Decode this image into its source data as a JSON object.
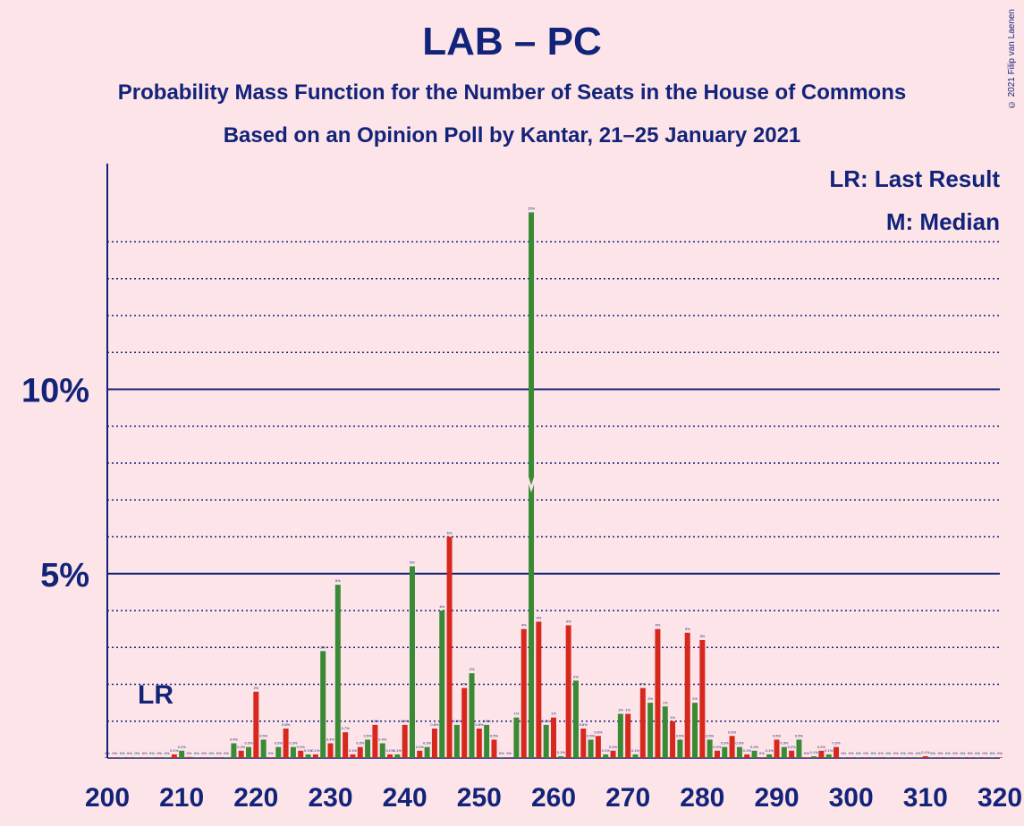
{
  "title": "LAB – PC",
  "subtitle1": "Probability Mass Function for the Number of Seats in the House of Commons",
  "subtitle2": "Based on an Opinion Poll by Kantar, 21–25 January 2021",
  "copyright": "© 2021 Filip van Laenen",
  "legend": {
    "lr": "LR: Last Result",
    "m": "M: Median"
  },
  "lr_marker": "LR",
  "colors": {
    "red": "#d7281e",
    "green": "#3a8a35",
    "navy": "#12237a",
    "background": "#fde4e8"
  },
  "chart_data": {
    "type": "bar",
    "xlabel": "",
    "ylabel": "",
    "xlim": [
      200,
      320
    ],
    "ylim": [
      0,
      16
    ],
    "x_ticks": [
      "200",
      "210",
      "220",
      "230",
      "240",
      "250",
      "260",
      "270",
      "280",
      "290",
      "300",
      "310",
      "320"
    ],
    "y_ticks": [
      {
        "value": 5,
        "label": "5%"
      },
      {
        "value": 10,
        "label": "10%"
      }
    ],
    "last_result": 206,
    "median": 257,
    "series": [
      {
        "color": "red",
        "points": [
          [
            201,
            0
          ],
          [
            203,
            0
          ],
          [
            205,
            0
          ],
          [
            207,
            0.02
          ],
          [
            209,
            0.1
          ],
          [
            211,
            0.03
          ],
          [
            213,
            0.02
          ],
          [
            215,
            0.02
          ],
          [
            217,
            0
          ],
          [
            218,
            0.2
          ],
          [
            220,
            1.8
          ],
          [
            222,
            0
          ],
          [
            224,
            0.8
          ],
          [
            226,
            0.2
          ],
          [
            228,
            0.1
          ],
          [
            230,
            0.4
          ],
          [
            232,
            0.7
          ],
          [
            233,
            0.1
          ],
          [
            234,
            0.3
          ],
          [
            236,
            0.9
          ],
          [
            238,
            0.1
          ],
          [
            240,
            0.9
          ],
          [
            242,
            0.2
          ],
          [
            244,
            0.8
          ],
          [
            246,
            6
          ],
          [
            248,
            1.9
          ],
          [
            250,
            0.8
          ],
          [
            252,
            0.5
          ],
          [
            254,
            0
          ],
          [
            256,
            3.5
          ],
          [
            258,
            3.7
          ],
          [
            260,
            1.1
          ],
          [
            262,
            3.6
          ],
          [
            264,
            0.8
          ],
          [
            266,
            0.6
          ],
          [
            268,
            0.2
          ],
          [
            270,
            1.2
          ],
          [
            272,
            1.9
          ],
          [
            274,
            3.5
          ],
          [
            276,
            1
          ],
          [
            278,
            3.4
          ],
          [
            280,
            3.2
          ],
          [
            282,
            0.2
          ],
          [
            284,
            0.6
          ],
          [
            286,
            0.1
          ],
          [
            288,
            0
          ],
          [
            290,
            0.5
          ],
          [
            292,
            0.2
          ],
          [
            294,
            0
          ],
          [
            296,
            0.2
          ],
          [
            298,
            0.3
          ],
          [
            300,
            0
          ],
          [
            302,
            0
          ],
          [
            304,
            0.02
          ],
          [
            306,
            0
          ],
          [
            308,
            0
          ],
          [
            310,
            0.05
          ],
          [
            312,
            0
          ],
          [
            314,
            0
          ],
          [
            316,
            0
          ],
          [
            318,
            0
          ],
          [
            320,
            0
          ]
        ]
      },
      {
        "color": "green",
        "points": [
          [
            200,
            0
          ],
          [
            202,
            0
          ],
          [
            204,
            0
          ],
          [
            206,
            0.02
          ],
          [
            208,
            0.02
          ],
          [
            210,
            0.2
          ],
          [
            212,
            0
          ],
          [
            214,
            0.02
          ],
          [
            216,
            0.02
          ],
          [
            217,
            0.4
          ],
          [
            219,
            0.3
          ],
          [
            221,
            0.5
          ],
          [
            223,
            0.3
          ],
          [
            225,
            0.3
          ],
          [
            227,
            0.1
          ],
          [
            229,
            2.9
          ],
          [
            231,
            4.7
          ],
          [
            235,
            0.5
          ],
          [
            237,
            0.4
          ],
          [
            239,
            0.1
          ],
          [
            241,
            5.2
          ],
          [
            243,
            0.3
          ],
          [
            245,
            4
          ],
          [
            247,
            0.9
          ],
          [
            249,
            2.3
          ],
          [
            251,
            0.9
          ],
          [
            253,
            0
          ],
          [
            255,
            1.1
          ],
          [
            257,
            14.8
          ],
          [
            259,
            0.9
          ],
          [
            261,
            0.05
          ],
          [
            263,
            2.1
          ],
          [
            265,
            0.5
          ],
          [
            267,
            0.1
          ],
          [
            269,
            1.2
          ],
          [
            271,
            0.1
          ],
          [
            273,
            1.5
          ],
          [
            275,
            1.4
          ],
          [
            277,
            0.5
          ],
          [
            279,
            1.5
          ],
          [
            281,
            0.5
          ],
          [
            283,
            0.3
          ],
          [
            285,
            0.3
          ],
          [
            287,
            0.2
          ],
          [
            289,
            0.1
          ],
          [
            291,
            0.3
          ],
          [
            293,
            0.5
          ],
          [
            295,
            0.05
          ],
          [
            297,
            0.1
          ],
          [
            299,
            0
          ],
          [
            301,
            0
          ],
          [
            303,
            0
          ],
          [
            305,
            0
          ],
          [
            307,
            0
          ],
          [
            309,
            0
          ],
          [
            311,
            0
          ],
          [
            313,
            0.02
          ],
          [
            315,
            0
          ],
          [
            317,
            0
          ],
          [
            319,
            0
          ]
        ]
      }
    ]
  }
}
